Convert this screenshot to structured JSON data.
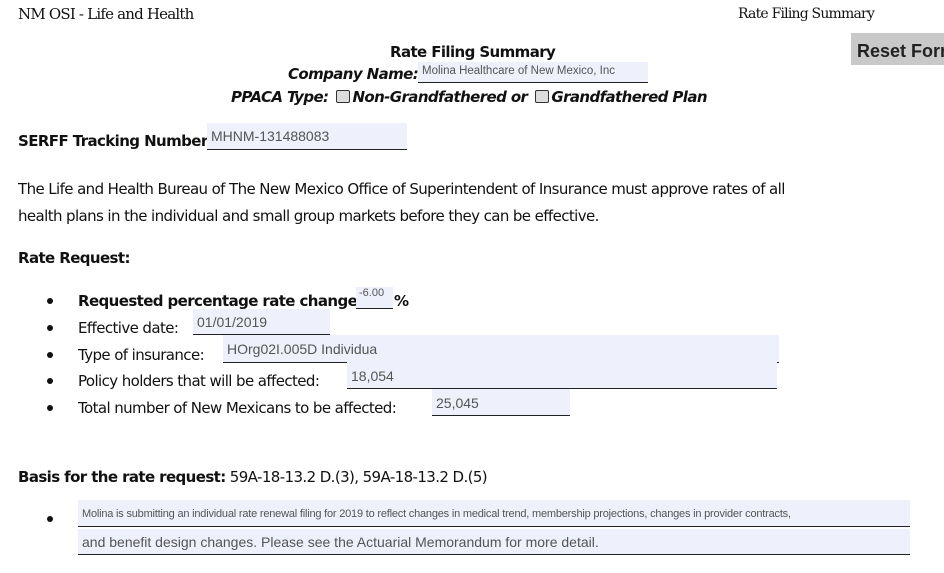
{
  "header": {
    "left": "NM OSI - Life and Health",
    "right": "Rate Filing Summary"
  },
  "reset_button": "Reset Form",
  "title": "Rate Filing Summary",
  "company": {
    "label": "Company Name:",
    "value": "Molina Healthcare of New Mexico, Inc"
  },
  "ppaca": {
    "label": "PPACA Type:",
    "option1": "Non-Grandfathered or",
    "option2": "Grandfathered Plan"
  },
  "serff": {
    "label": "SERFF Tracking Number:",
    "value": "MHNM-131488083"
  },
  "intro": {
    "line1": "The Life and Health Bureau of The New Mexico Office of Superintendent of Insurance must approve rates of all",
    "line2": "health plans in the individual and small group markets before they can be effective."
  },
  "rate_request": {
    "heading": "Rate Request:",
    "items": [
      {
        "label": "Requested  percentage rate change:",
        "value": "-6.00",
        "suffix": "%"
      },
      {
        "label": "Effective date:",
        "value": "01/01/2019"
      },
      {
        "label": "Type of insurance:",
        "value": "HOrg02I.005D Individua"
      },
      {
        "label": "Policy holders that will be affected:",
        "value": "18,054"
      },
      {
        "label": "Total number of New Mexicans to be affected:",
        "value": "25,045"
      }
    ]
  },
  "basis": {
    "label": "Basis for the rate request:",
    "value": "59A-18-13.2 D.(3),  59A-18-13.2 D.(5)",
    "line1": "Molina is submitting an individual rate renewal filing for 2019 to reflect changes in medical trend, membership projections, changes in provider contracts,",
    "line2": "and benefit design changes. Please see the Actuarial Memorandum for more detail."
  }
}
